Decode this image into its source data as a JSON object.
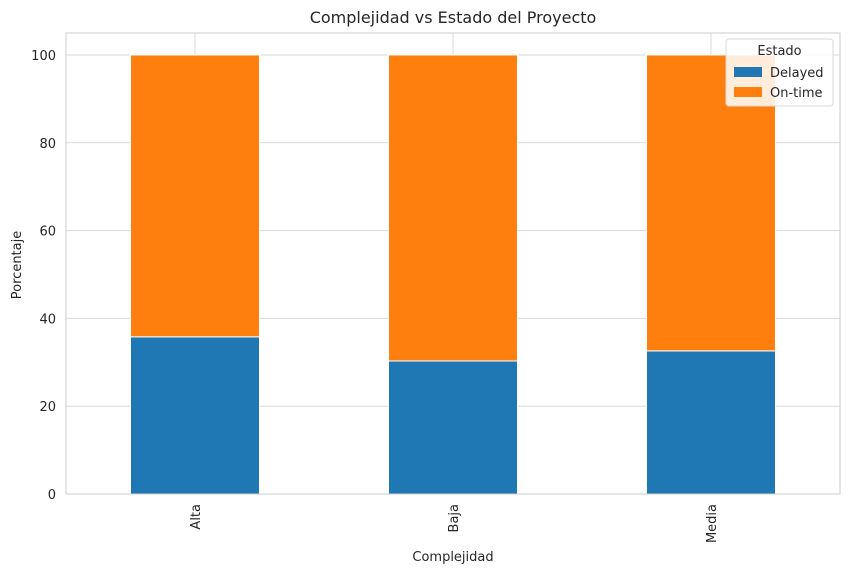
{
  "chart_data": {
    "type": "bar",
    "stacked": true,
    "title": "Complejidad vs Estado del Proyecto",
    "xlabel": "Complejidad",
    "ylabel": "Porcentaje",
    "categories": [
      "Alta",
      "Baja",
      "Media"
    ],
    "series": [
      {
        "name": "Delayed",
        "values": [
          35.8,
          30.3,
          32.6
        ],
        "color": "#1f77b4"
      },
      {
        "name": "On-time",
        "values": [
          64.2,
          69.7,
          67.4
        ],
        "color": "#ff7f0e"
      }
    ],
    "ylim": [
      0,
      105
    ],
    "yticks": [
      0,
      20,
      40,
      60,
      80,
      100
    ],
    "grid": true,
    "legend": {
      "title": "Estado",
      "position": "top-right"
    }
  }
}
